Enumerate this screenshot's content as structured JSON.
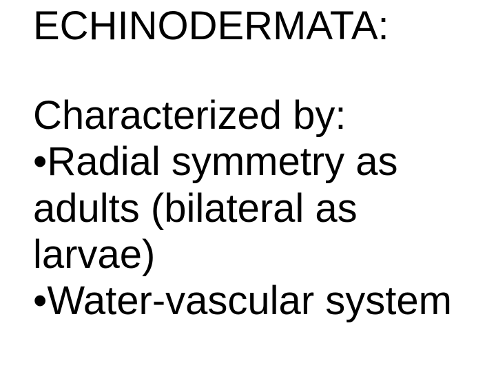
{
  "slide": {
    "background_color": "#ffffff",
    "text_color": "#000000",
    "font_family": "Arial",
    "title": {
      "text": "ECHINODERMATA:",
      "font_size_pt": 44,
      "font_weight": 400
    },
    "body": {
      "font_size_pt": 44,
      "font_weight": 400,
      "line_height": 1.16,
      "intro": "Characterized by:",
      "bullets": [
        {
          "marker": "•",
          "lines": [
            "Radial symmetry as",
            "adults (bilateral as",
            "larvae)"
          ]
        },
        {
          "marker": "•",
          "lines": [
            "Water-vascular system"
          ]
        }
      ]
    }
  }
}
